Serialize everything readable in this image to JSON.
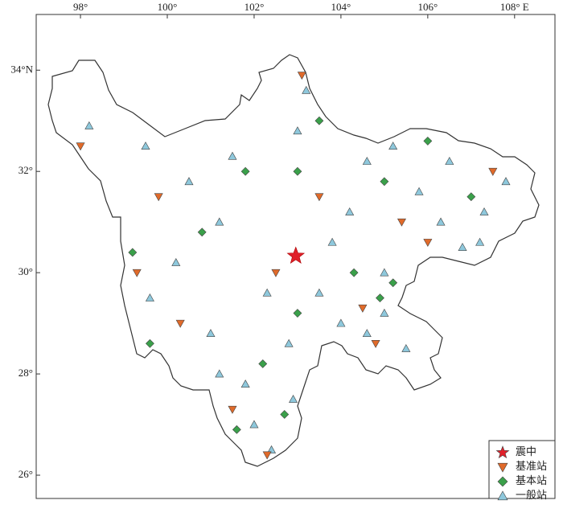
{
  "map": {
    "xlim": [
      96.98,
      108.93
    ],
    "ylim": [
      25.54,
      35.1
    ],
    "xticks": [
      {
        "value": 98,
        "label": "98°"
      },
      {
        "value": 100,
        "label": "100°"
      },
      {
        "value": 102,
        "label": "102°"
      },
      {
        "value": 104,
        "label": "104°"
      },
      {
        "value": 106,
        "label": "106°"
      },
      {
        "value": 108,
        "label": "108° E"
      }
    ],
    "yticks": [
      {
        "value": 34,
        "label": "34°N"
      },
      {
        "value": 32,
        "label": "32°"
      },
      {
        "value": 30,
        "label": "30°"
      },
      {
        "value": 28,
        "label": "28°"
      },
      {
        "value": 26,
        "label": "26°"
      }
    ],
    "series": [
      {
        "name": "一般站",
        "color": "#8ec8dc",
        "shape": "triangle-up",
        "points": [
          [
            98.2,
            32.9
          ],
          [
            99.5,
            32.5
          ],
          [
            100.5,
            31.8
          ],
          [
            101.2,
            31.0
          ],
          [
            100.2,
            30.2
          ],
          [
            99.6,
            29.5
          ],
          [
            101.0,
            28.8
          ],
          [
            101.8,
            27.8
          ],
          [
            102.0,
            27.0
          ],
          [
            102.4,
            26.5
          ],
          [
            102.9,
            27.5
          ],
          [
            102.8,
            28.6
          ],
          [
            103.5,
            29.6
          ],
          [
            103.8,
            30.6
          ],
          [
            104.2,
            31.2
          ],
          [
            104.6,
            32.2
          ],
          [
            105.2,
            32.5
          ],
          [
            105.8,
            31.6
          ],
          [
            106.3,
            31.0
          ],
          [
            106.8,
            30.5
          ],
          [
            107.3,
            31.2
          ],
          [
            107.8,
            31.8
          ],
          [
            106.5,
            32.2
          ],
          [
            105.0,
            30.0
          ],
          [
            105.0,
            29.2
          ],
          [
            104.6,
            28.8
          ],
          [
            104.0,
            29.0
          ],
          [
            102.3,
            29.6
          ],
          [
            101.5,
            32.3
          ],
          [
            103.0,
            32.8
          ],
          [
            103.2,
            33.6
          ],
          [
            107.2,
            30.6
          ],
          [
            105.5,
            28.5
          ],
          [
            101.2,
            28.0
          ]
        ]
      },
      {
        "name": "基准站",
        "color": "#e06a2a",
        "shape": "triangle-down",
        "points": [
          [
            98.0,
            32.5
          ],
          [
            99.8,
            31.5
          ],
          [
            102.5,
            30.0
          ],
          [
            103.1,
            33.9
          ],
          [
            104.8,
            28.6
          ],
          [
            104.5,
            29.3
          ],
          [
            106.0,
            30.6
          ],
          [
            107.5,
            32.0
          ],
          [
            101.5,
            27.3
          ],
          [
            102.3,
            26.4
          ],
          [
            100.3,
            29.0
          ],
          [
            103.5,
            31.5
          ],
          [
            105.4,
            31.0
          ],
          [
            99.3,
            30.0
          ]
        ]
      },
      {
        "name": "基本站",
        "color": "#3aa04a",
        "shape": "diamond",
        "points": [
          [
            99.2,
            30.4
          ],
          [
            100.8,
            30.8
          ],
          [
            101.8,
            32.0
          ],
          [
            103.0,
            32.0
          ],
          [
            103.5,
            33.0
          ],
          [
            105.0,
            31.8
          ],
          [
            106.0,
            32.6
          ],
          [
            107.0,
            31.5
          ],
          [
            105.2,
            29.8
          ],
          [
            104.3,
            30.0
          ],
          [
            103.0,
            29.2
          ],
          [
            102.2,
            28.2
          ],
          [
            101.6,
            26.9
          ],
          [
            102.7,
            27.2
          ],
          [
            99.6,
            28.6
          ],
          [
            104.9,
            29.5
          ]
        ]
      }
    ],
    "epicenter": {
      "name": "震中",
      "color": "#e0202a",
      "lon": 102.96,
      "lat": 30.33
    }
  }
}
